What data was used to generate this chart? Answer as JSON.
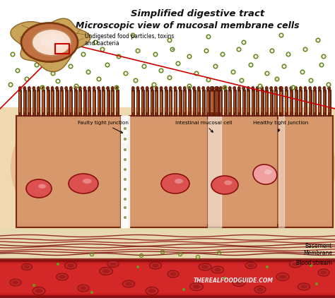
{
  "title1": "Simplified digestive tract",
  "title2": "Microscopic view of mucosal membrane cells",
  "label_bacteria": "Undigested food particles, toxins\nand bacteria",
  "label_faulty": "Faulty tight junction",
  "label_intestinal": "Intestinal mucosal cell",
  "label_healthy": "Healthy tight junction",
  "label_basement": "Basement\nMembrane",
  "label_blood": "Blood stream",
  "label_watermark": "THEREALFOODGUIDE.COM",
  "bg_color": "#ffffff",
  "cell_fill": "#d4956a",
  "cell_fill_light": "#e8b888",
  "cell_edge": "#7a2a0a",
  "nucleus_fill": "#c03030",
  "nucleus_fill2": "#e06060",
  "nucleus_edge": "#8b1010",
  "villi_color": "#7a2a0a",
  "villi_fill": "#c07040",
  "junction_fill": "#e8c090",
  "junction_edge": "#8b5a20",
  "particle_color": "#6a8a20",
  "basement_top": "#c04040",
  "basement_mid": "#d8b080",
  "basement_light": "#f0e0b0",
  "blood_dark": "#8b1010",
  "blood_mid": "#cc2020",
  "blood_light": "#dd4444",
  "rbc_fill": "#c03030",
  "rbc_dark": "#8b1010",
  "glow_color": "#d4906060",
  "white_gap": "#ffffff",
  "tube_outer": "#c8a060",
  "tube_inner": "#f0c8a0",
  "tube_lumen": "#f8e0d0",
  "tube_edge": "#8b6030",
  "red_line": "#cc0000"
}
